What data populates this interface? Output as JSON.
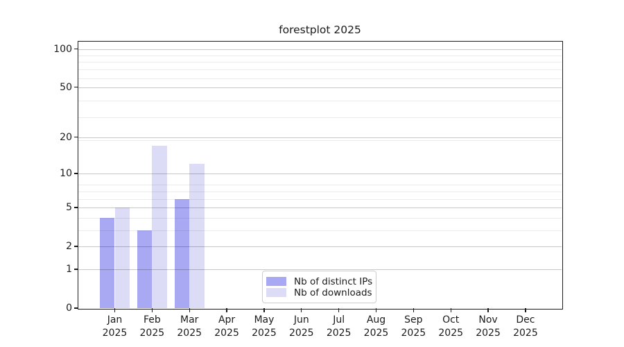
{
  "chart_data": {
    "type": "bar",
    "title": "forestplot 2025",
    "categories": [
      "Jan",
      "Feb",
      "Mar",
      "Apr",
      "May",
      "Jun",
      "Jul",
      "Aug",
      "Sep",
      "Oct",
      "Nov",
      "Dec"
    ],
    "category_year": "2025",
    "series": [
      {
        "name": "Nb of distinct IPs",
        "color": "#a9a9f3",
        "values": [
          4,
          3,
          6,
          0,
          0,
          0,
          0,
          0,
          0,
          0,
          0,
          0
        ]
      },
      {
        "name": "Nb of downloads",
        "color": "#dcdcf7",
        "values": [
          5,
          17,
          12,
          0,
          0,
          0,
          0,
          0,
          0,
          0,
          0,
          0
        ]
      }
    ],
    "y_axis": {
      "scale": "log10(1+y)",
      "tick_values": [
        0,
        1,
        2,
        5,
        10,
        20,
        50,
        100
      ],
      "tick_labels": [
        "0",
        "1",
        "2",
        "5",
        "10",
        "20",
        "50",
        "100"
      ],
      "ymax": 114,
      "minor_gridlines_at_1_plus_y": [
        4,
        5,
        7,
        8,
        9,
        20,
        30,
        40,
        60,
        70,
        80,
        90
      ]
    },
    "xlabel": "",
    "ylabel": "",
    "grid": true,
    "legend_position": "lower center"
  },
  "colors": {
    "background": "#ffffff",
    "text": "#1a1a1a",
    "spine": "#1a1a1a",
    "grid_major": "rgba(0,0,0,0.22)",
    "grid_minor": "rgba(0,0,0,0.08)",
    "legend_border": "#cccccc"
  }
}
